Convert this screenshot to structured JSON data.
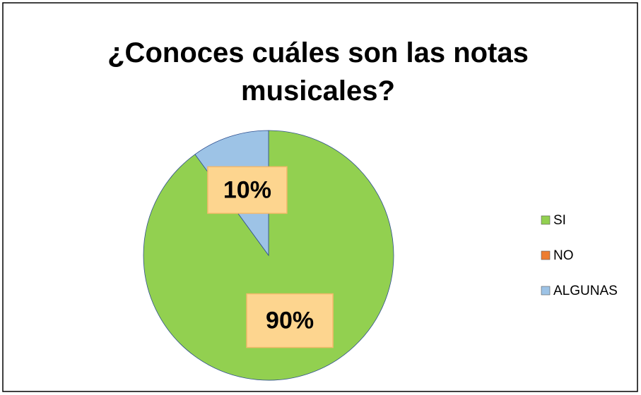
{
  "chart_data": {
    "type": "pie",
    "title": "¿Conoces cuáles son las notas musicales?",
    "categories": [
      "SI",
      "NO",
      "ALGUNAS"
    ],
    "values": [
      90,
      0,
      10
    ],
    "value_labels": [
      "90%",
      null,
      "10%"
    ],
    "colors": [
      "#92d050",
      "#ed7d31",
      "#9dc3e6"
    ],
    "legend": "right"
  }
}
